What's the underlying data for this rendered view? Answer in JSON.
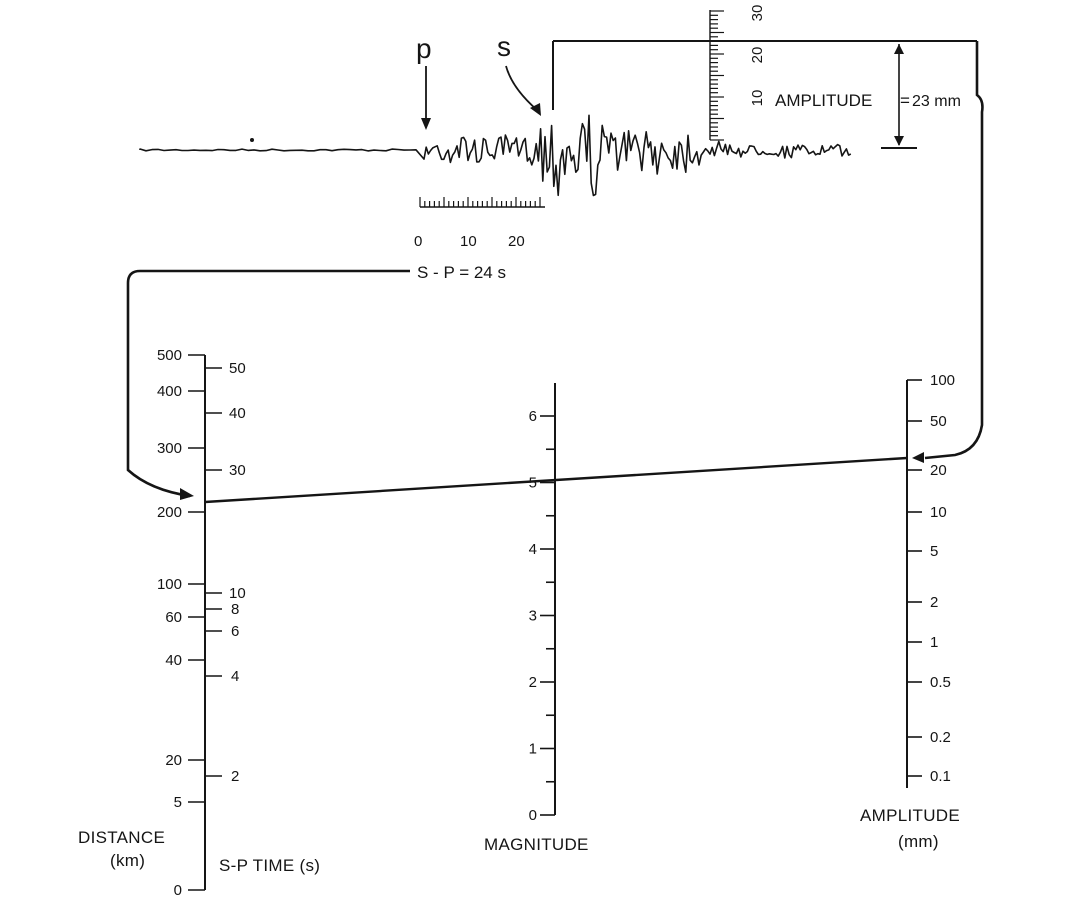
{
  "seismogram": {
    "p_label": "p",
    "s_label": "s",
    "amplitude_label": "AMPLITUDE",
    "amplitude_value": "23 mm",
    "time_scale_ticks": [
      "0",
      "10",
      "20"
    ],
    "amplitude_scale_ticks": [
      "10",
      "20",
      "30"
    ],
    "sp_label": "S - P = 24 s"
  },
  "nomogram": {
    "distance": {
      "title_line1": "DISTANCE",
      "title_line2": "(km)",
      "ticks": [
        {
          "label": "500",
          "value": 500
        },
        {
          "label": "400",
          "value": 400
        },
        {
          "label": "300",
          "value": 300
        },
        {
          "label": "200",
          "value": 200
        },
        {
          "label": "100",
          "value": 100
        },
        {
          "label": "60",
          "value": 60
        },
        {
          "label": "40",
          "value": 40
        },
        {
          "label": "20",
          "value": 20
        },
        {
          "label": "5",
          "value": 5
        },
        {
          "label": "0",
          "value": 0
        }
      ]
    },
    "sp_time": {
      "title": "S-P TIME (s)",
      "ticks": [
        {
          "label": "50",
          "value": 50
        },
        {
          "label": "40",
          "value": 40
        },
        {
          "label": "30",
          "value": 30
        },
        {
          "label": "10",
          "value": 10
        },
        {
          "label": "8",
          "value": 8
        },
        {
          "label": "6",
          "value": 6
        },
        {
          "label": "4",
          "value": 4
        },
        {
          "label": "2",
          "value": 2
        }
      ]
    },
    "magnitude": {
      "title": "MAGNITUDE",
      "ticks": [
        "0",
        "1",
        "2",
        "3",
        "4",
        "5",
        "6"
      ],
      "min": 0,
      "max": 6.5
    },
    "amplitude": {
      "title_line1": "AMPLITUDE",
      "title_line2": "(mm)",
      "ticks": [
        {
          "label": "100",
          "value": 100
        },
        {
          "label": "50",
          "value": 50
        },
        {
          "label": "20",
          "value": 20
        },
        {
          "label": "10",
          "value": 10
        },
        {
          "label": "5",
          "value": 5
        },
        {
          "label": "2",
          "value": 2
        },
        {
          "label": "1",
          "value": 1
        },
        {
          "label": "0.5",
          "value": 0.5
        },
        {
          "label": "0.2",
          "value": 0.2
        },
        {
          "label": "0.1",
          "value": 0.1
        }
      ]
    },
    "reading": {
      "sp_time_s": 24,
      "amplitude_mm": 23,
      "magnitude": 5
    }
  },
  "colors": {
    "ink": "#151515",
    "background": "#ffffff"
  }
}
